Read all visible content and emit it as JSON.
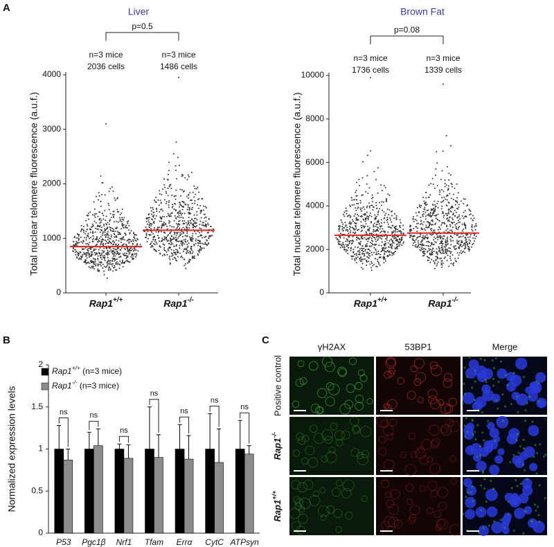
{
  "panels": [
    "A",
    "B",
    "C"
  ],
  "chart_data": [
    {
      "type": "dotplot",
      "title": "Liver",
      "ylabel": "Total nuclear telomere fluorescence (a.u.f.)",
      "categories": [
        "Rap1+/+",
        "Rap1-/-"
      ],
      "n_labels": [
        "n=3 mice",
        "n=3 mice"
      ],
      "cell_labels": [
        "2036 cells",
        "1486 cells"
      ],
      "p_label": "p=0.5",
      "mean": [
        850,
        1150
      ],
      "max": [
        3100,
        3950
      ],
      "ylim": [
        0,
        4000
      ],
      "yticks": [
        0,
        1000,
        2000,
        3000,
        4000
      ],
      "dot_color": "#333333",
      "mean_color": "#e0201e"
    },
    {
      "type": "dotplot",
      "title": "Brown Fat",
      "ylabel": "Total nuclear telomere fluorescence (a.u.f.)",
      "categories": [
        "Rap1+/+",
        "Rap1-/-"
      ],
      "n_labels": [
        "n=3 mice",
        "n=3 mice"
      ],
      "cell_labels": [
        "1736 cells",
        "1339 cells"
      ],
      "p_label": "p=0.08",
      "mean": [
        2650,
        2750
      ],
      "max": [
        9900,
        9600
      ],
      "ylim": [
        0,
        10000
      ],
      "yticks": [
        0,
        2000,
        4000,
        6000,
        8000,
        10000
      ],
      "dot_color": "#333333",
      "mean_color": "#e0201e"
    },
    {
      "type": "bar",
      "ylabel": "Normalized expression levels",
      "categories": [
        "P53",
        "Pgc1β",
        "Nrf1",
        "Tfam",
        "Errα",
        "CytC",
        "ATPsyn"
      ],
      "series": [
        {
          "name": "Rap1+/+ (n=3 mice)",
          "color": "#000000",
          "values": [
            1,
            1,
            1,
            1,
            1,
            1,
            1
          ],
          "errors": [
            0.28,
            0.2,
            0.06,
            0.5,
            0.29,
            0.42,
            0.34
          ]
        },
        {
          "name": "Rap1-/- (n=3 mice)",
          "color": "#8c8c8c",
          "values": [
            0.87,
            1.04,
            0.89,
            0.9,
            0.88,
            0.84,
            0.94
          ],
          "errors": [
            0.13,
            0.2,
            0.16,
            0.27,
            0.28,
            0.4,
            0.1
          ]
        }
      ],
      "annotations": [
        "ns",
        "ns",
        "ns",
        "ns",
        "ns",
        "ns",
        "ns"
      ],
      "ylim": [
        0,
        2
      ],
      "yticks": [
        0,
        0.5,
        1,
        1.5,
        2
      ]
    }
  ],
  "image_grid": {
    "columns": [
      "γH2AX",
      "53BP1",
      "Merge"
    ],
    "rows": [
      "Positive control",
      "Rap1-/-",
      "Rap1+/+"
    ]
  }
}
